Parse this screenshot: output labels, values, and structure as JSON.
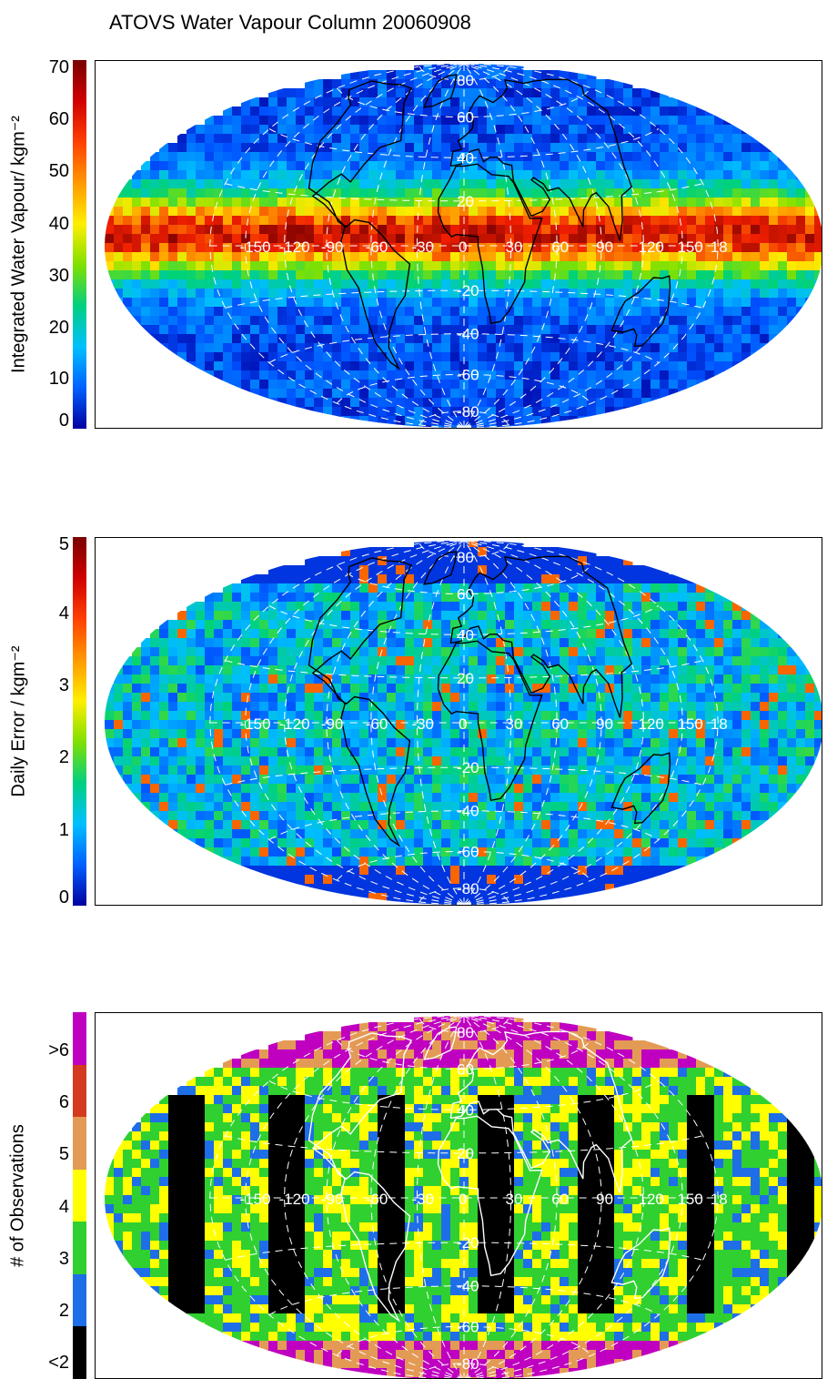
{
  "title": "ATOVS Water Vapour Column 20060908",
  "lon_labels": [
    "-150",
    "-120",
    "-90",
    "-60",
    "-30",
    "0",
    "30",
    "60",
    "90",
    "120",
    "150",
    "18"
  ],
  "lat_labels": [
    "80",
    "60",
    "40",
    "20",
    "-20",
    "-40",
    "-60",
    "-80"
  ],
  "panels": [
    {
      "ylabel": "Integrated Water Vapour/ kgm⁻²",
      "ticks": [
        "70",
        "60",
        "50",
        "40",
        "30",
        "20",
        "10",
        "0"
      ],
      "colormap": "rainbow",
      "coast_color": "#000000"
    },
    {
      "ylabel": "Daily Error / kgm⁻²",
      "ticks": [
        "5",
        "4",
        "3",
        "2",
        "1",
        "0"
      ],
      "colormap": "rainbow",
      "coast_color": "#000000"
    },
    {
      "ylabel": "# of Observations",
      "ticks": [
        ">6",
        "6",
        "5",
        "4",
        "3",
        "2",
        "<2"
      ],
      "colormap": "discrete",
      "discrete_colors": [
        "#c000c0",
        "#d43a1f",
        "#e39a55",
        "#ffff00",
        "#30d030",
        "#1e6ee8",
        "#000000"
      ],
      "coast_color": "#ffffff"
    }
  ]
}
